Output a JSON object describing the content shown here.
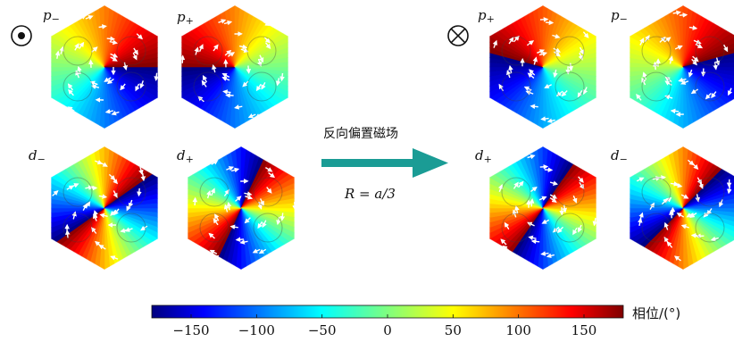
{
  "left_symbol": "out-of-page-symbol",
  "right_symbol": "into-page-symbol",
  "left_group": {
    "top_left": {
      "label_main": "p",
      "label_sub": "−"
    },
    "top_right": {
      "label_main": "p",
      "label_sub": "+"
    },
    "bottom_left": {
      "label_main": "d",
      "label_sub": "−"
    },
    "bottom_right": {
      "label_main": "d",
      "label_sub": "+"
    }
  },
  "right_group": {
    "top_left": {
      "label_main": "p",
      "label_sub": "+"
    },
    "top_right": {
      "label_main": "p",
      "label_sub": "−"
    },
    "bottom_left": {
      "label_main": "d",
      "label_sub": "+"
    },
    "bottom_right": {
      "label_main": "d",
      "label_sub": "−"
    }
  },
  "arrow": {
    "caption_top": "反向偏置磁场",
    "caption_bottom": "R = a/3",
    "color": "#1a9c95"
  },
  "colorbar": {
    "label": "相位/(°)",
    "ticks": [
      "−150",
      "−100",
      "−50",
      "0",
      "50",
      "100",
      "150"
    ],
    "colormap": "jet"
  }
}
